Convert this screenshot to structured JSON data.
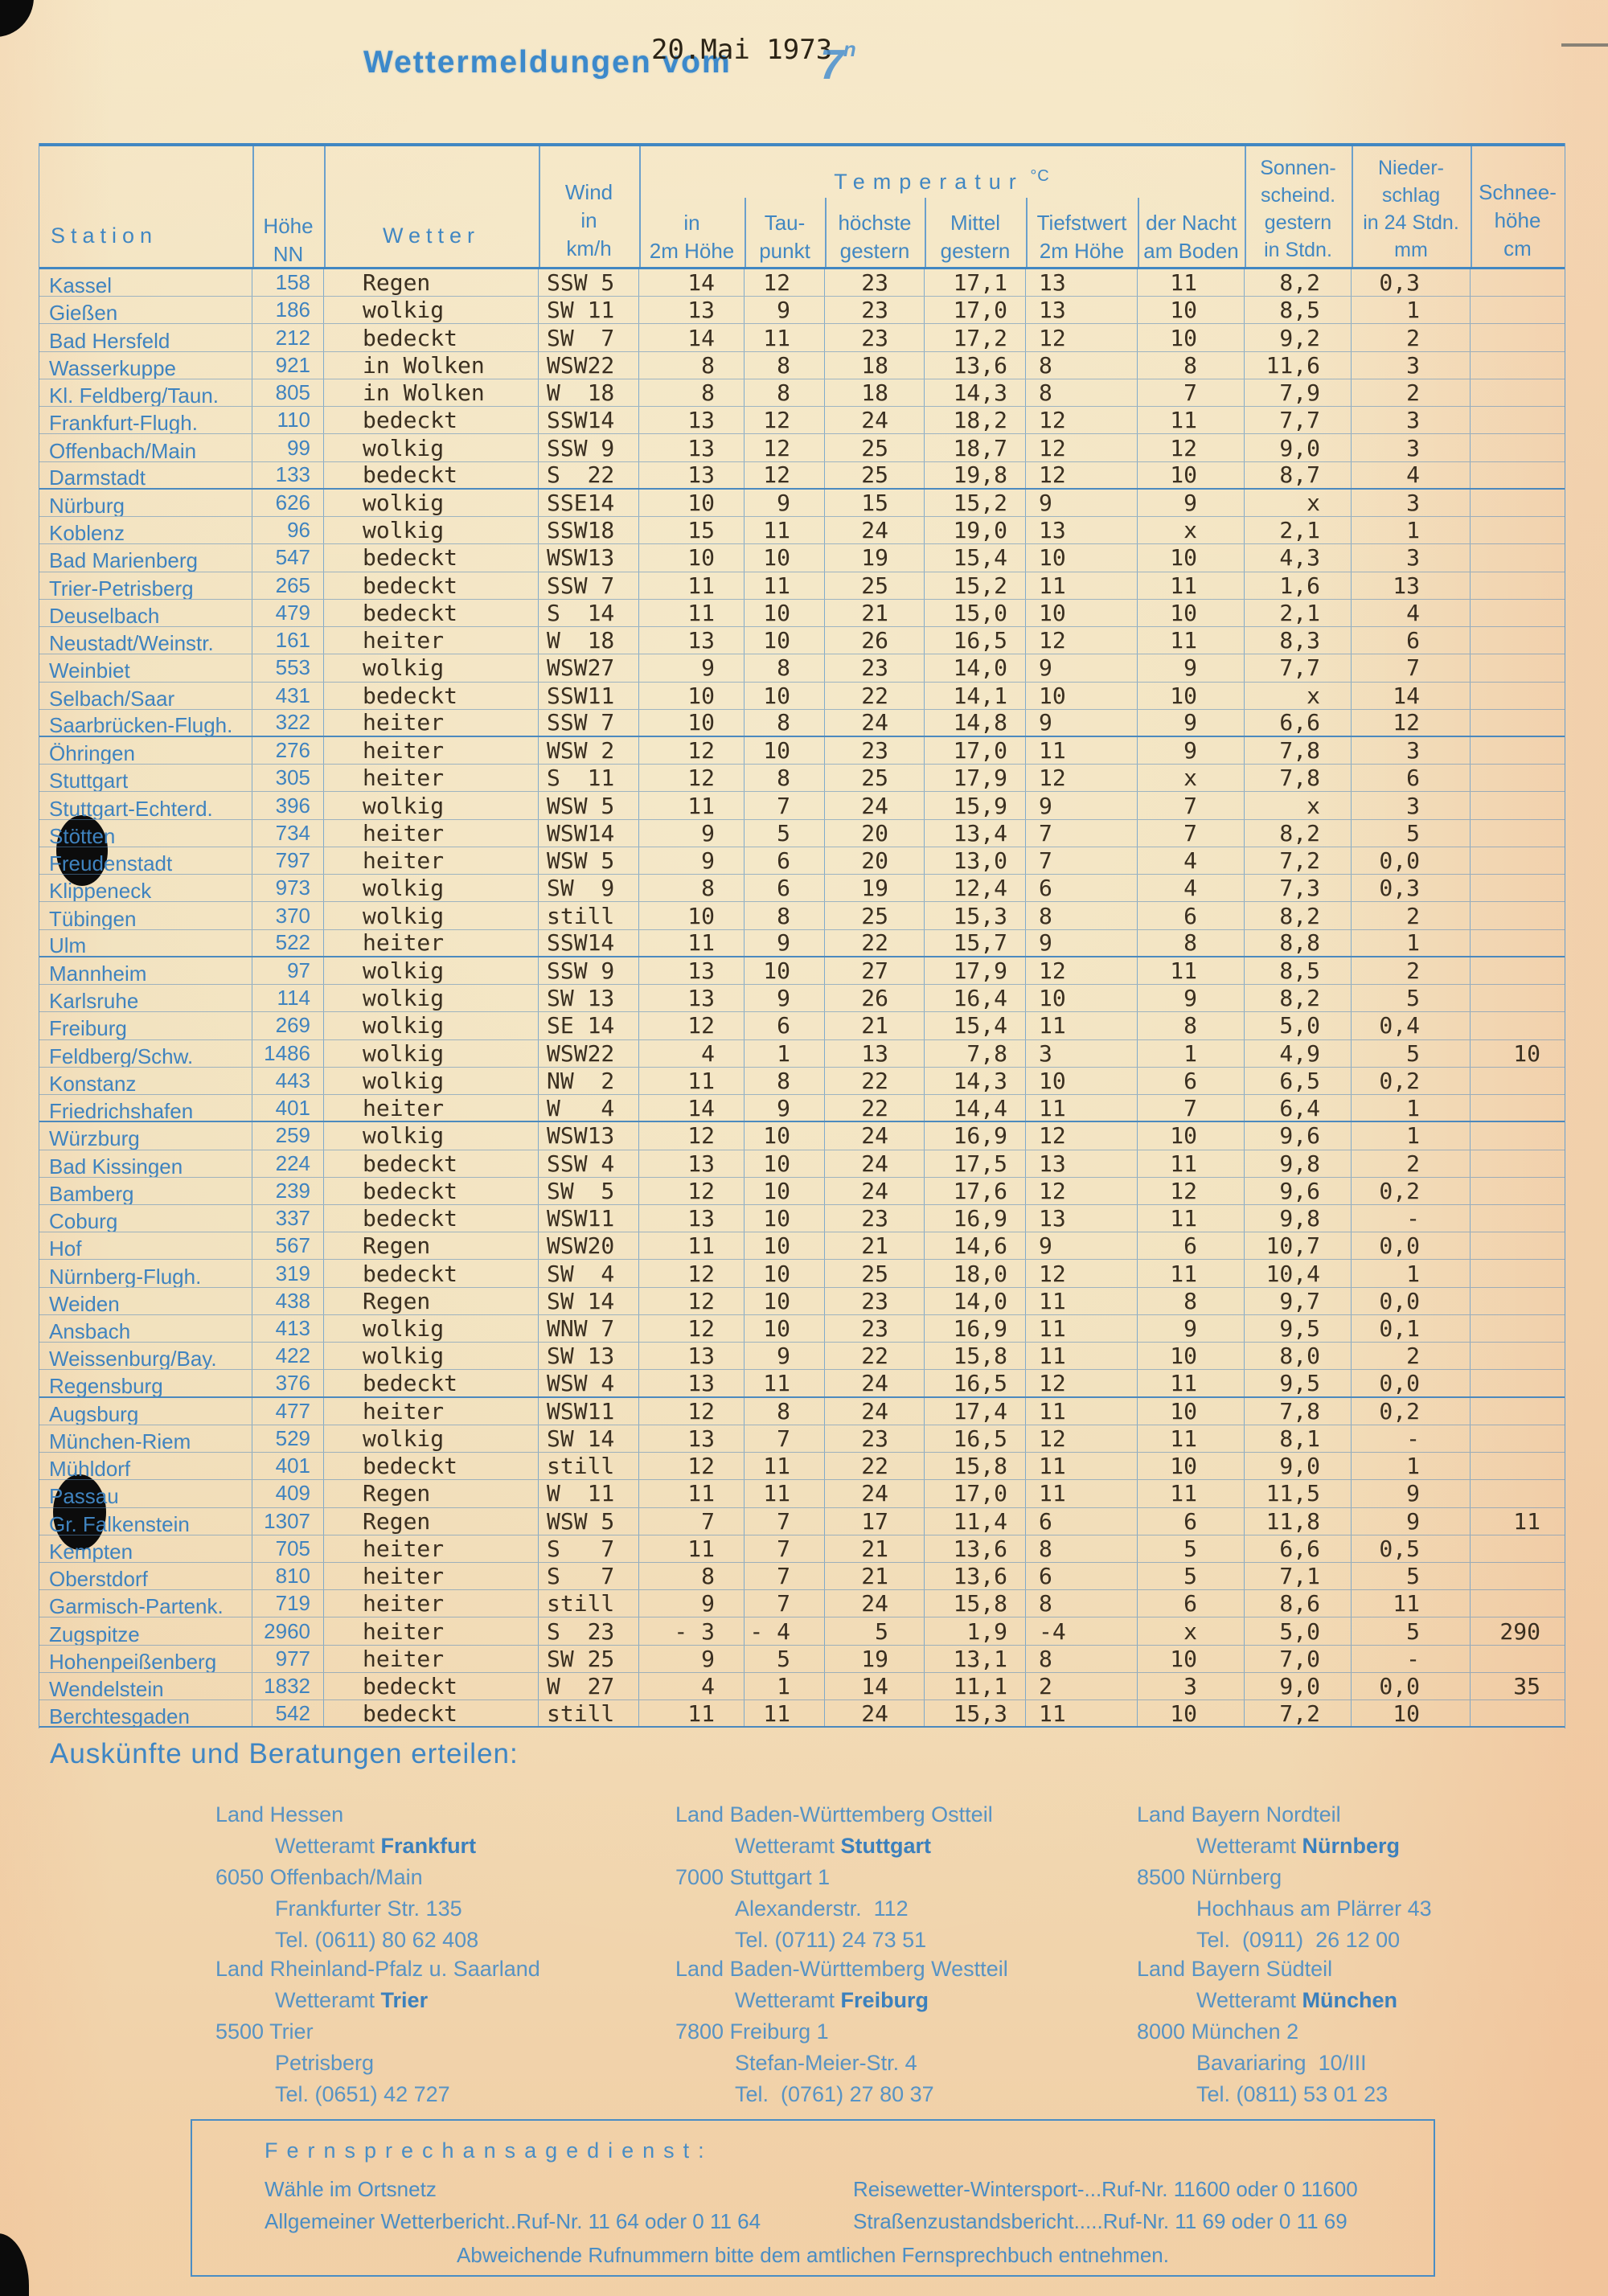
{
  "page": {
    "title_main": "Wettermeldungen vom",
    "title_date": "20.Mai 1973",
    "title_time": "7",
    "title_time_sup": "n",
    "ink_blue": "#4187c2",
    "ink_black": "#3a2f20",
    "paper": "#f1dfba"
  },
  "table": {
    "headers": {
      "station": "Station",
      "hoehe": "Höhe\nNN",
      "wetter": "Wetter",
      "wind": "Wind\nin\nkm/h",
      "temp_group": "Temperatur",
      "temp_unit": "°C",
      "t2m": "in\n2m Höhe",
      "tau": "Tau-\npunkt",
      "hoechste": "höchste\ngestern",
      "mittel": "Mittel\ngestern",
      "tiefstwert": "Tiefstwert\n2m Höhe",
      "nacht": "der Nacht\nam Boden",
      "sonne": "Sonnen-\nscheind.\ngestern\nin Stdn.",
      "nieder": "Nieder-\nschlag\nin 24 Stdn.\nmm",
      "schnee": "Schnee-\nhöhe\ncm"
    },
    "row_fields": [
      "station",
      "hoehe_nn",
      "wetter",
      "wind_km_h",
      "temp_2m_hoehe",
      "taupunkt",
      "hoechste_gestern",
      "mittel_gestern",
      "tiefstwert_2m_hoehe",
      "tiefstwert_nacht_am_boden",
      "sonnenschein_gestern_stdn",
      "niederschlag_24stdn_mm",
      "schneehoehe_cm",
      "group_end"
    ],
    "rows": [
      [
        "Kassel",
        "158",
        "Regen",
        "SSW 5",
        "14",
        "12",
        "23",
        "17,1",
        "13",
        "11",
        "8,2",
        "0,3",
        "",
        0
      ],
      [
        "Gießen",
        "186",
        "wolkig",
        "SW 11",
        "13",
        "9",
        "23",
        "17,0",
        "13",
        "10",
        "8,5",
        "1",
        "",
        0
      ],
      [
        "Bad Hersfeld",
        "212",
        "bedeckt",
        "SW  7",
        "14",
        "11",
        "23",
        "17,2",
        "12",
        "10",
        "9,2",
        "2",
        "",
        0
      ],
      [
        "Wasserkuppe",
        "921",
        "in Wolken",
        "WSW22",
        "8",
        "8",
        "18",
        "13,6",
        "8",
        "8",
        "11,6",
        "3",
        "",
        0
      ],
      [
        "Kl. Feldberg/Taun.",
        "805",
        "in Wolken",
        "W  18",
        "8",
        "8",
        "18",
        "14,3",
        "8",
        "7",
        "7,9",
        "2",
        "",
        0
      ],
      [
        "Frankfurt-Flugh.",
        "110",
        "bedeckt",
        "SSW14",
        "13",
        "12",
        "24",
        "18,2",
        "12",
        "11",
        "7,7",
        "3",
        "",
        0
      ],
      [
        "Offenbach/Main",
        "99",
        "wolkig",
        "SSW 9",
        "13",
        "12",
        "25",
        "18,7",
        "12",
        "12",
        "9,0",
        "3",
        "",
        0
      ],
      [
        "Darmstadt",
        "133",
        "bedeckt",
        "S  22",
        "13",
        "12",
        "25",
        "19,8",
        "12",
        "10",
        "8,7",
        "4",
        "",
        1
      ],
      [
        "Nürburg",
        "626",
        "wolkig",
        "SSE14",
        "10",
        "9",
        "15",
        "15,2",
        "9",
        "9",
        "x",
        "3",
        "",
        0
      ],
      [
        "Koblenz",
        "96",
        "wolkig",
        "SSW18",
        "15",
        "11",
        "24",
        "19,0",
        "13",
        "x",
        "2,1",
        "1",
        "",
        0
      ],
      [
        "Bad Marienberg",
        "547",
        "bedeckt",
        "WSW13",
        "10",
        "10",
        "19",
        "15,4",
        "10",
        "10",
        "4,3",
        "3",
        "",
        0
      ],
      [
        "Trier-Petrisberg",
        "265",
        "bedeckt",
        "SSW 7",
        "11",
        "11",
        "25",
        "15,2",
        "11",
        "11",
        "1,6",
        "13",
        "",
        0
      ],
      [
        "Deuselbach",
        "479",
        "bedeckt",
        "S  14",
        "11",
        "10",
        "21",
        "15,0",
        "10",
        "10",
        "2,1",
        "4",
        "",
        0
      ],
      [
        "Neustadt/Weinstr.",
        "161",
        "heiter",
        "W  18",
        "13",
        "10",
        "26",
        "16,5",
        "12",
        "11",
        "8,3",
        "6",
        "",
        0
      ],
      [
        "Weinbiet",
        "553",
        "wolkig",
        "WSW27",
        "9",
        "8",
        "23",
        "14,0",
        "9",
        "9",
        "7,7",
        "7",
        "",
        0
      ],
      [
        "Selbach/Saar",
        "431",
        "bedeckt",
        "SSW11",
        "10",
        "10",
        "22",
        "14,1",
        "10",
        "10",
        "x",
        "14",
        "",
        0
      ],
      [
        "Saarbrücken-Flugh.",
        "322",
        "heiter",
        "SSW 7",
        "10",
        "8",
        "24",
        "14,8",
        "9",
        "9",
        "6,6",
        "12",
        "",
        1
      ],
      [
        "Öhringen",
        "276",
        "heiter",
        "WSW 2",
        "12",
        "10",
        "23",
        "17,0",
        "11",
        "9",
        "7,8",
        "3",
        "",
        0
      ],
      [
        "Stuttgart",
        "305",
        "heiter",
        "S  11",
        "12",
        "8",
        "25",
        "17,9",
        "12",
        "x",
        "7,8",
        "6",
        "",
        0
      ],
      [
        "Stuttgart-Echterd.",
        "396",
        "wolkig",
        "WSW 5",
        "11",
        "7",
        "24",
        "15,9",
        "9",
        "7",
        "x",
        "3",
        "",
        0
      ],
      [
        "Stötten",
        "734",
        "heiter",
        "WSW14",
        "9",
        "5",
        "20",
        "13,4",
        "7",
        "7",
        "8,2",
        "5",
        "",
        0
      ],
      [
        "Freudenstadt",
        "797",
        "heiter",
        "WSW 5",
        "9",
        "6",
        "20",
        "13,0",
        "7",
        "4",
        "7,2",
        "0,0",
        "",
        0
      ],
      [
        "Klippeneck",
        "973",
        "wolkig",
        "SW  9",
        "8",
        "6",
        "19",
        "12,4",
        "6",
        "4",
        "7,3",
        "0,3",
        "",
        0
      ],
      [
        "Tübingen",
        "370",
        "wolkig",
        "still",
        "10",
        "8",
        "25",
        "15,3",
        "8",
        "6",
        "8,2",
        "2",
        "",
        0
      ],
      [
        "Ulm",
        "522",
        "heiter",
        "SSW14",
        "11",
        "9",
        "22",
        "15,7",
        "9",
        "8",
        "8,8",
        "1",
        "",
        1
      ],
      [
        "Mannheim",
        "97",
        "wolkig",
        "SSW 9",
        "13",
        "10",
        "27",
        "17,9",
        "12",
        "11",
        "8,5",
        "2",
        "",
        0
      ],
      [
        "Karlsruhe",
        "114",
        "wolkig",
        "SW 13",
        "13",
        "9",
        "26",
        "16,4",
        "10",
        "9",
        "8,2",
        "5",
        "",
        0
      ],
      [
        "Freiburg",
        "269",
        "wolkig",
        "SE 14",
        "12",
        "6",
        "21",
        "15,4",
        "11",
        "8",
        "5,0",
        "0,4",
        "",
        0
      ],
      [
        "Feldberg/Schw.",
        "1486",
        "wolkig",
        "WSW22",
        "4",
        "1",
        "13",
        "7,8",
        "3",
        "1",
        "4,9",
        "5",
        "10",
        0
      ],
      [
        "Konstanz",
        "443",
        "wolkig",
        "NW  2",
        "11",
        "8",
        "22",
        "14,3",
        "10",
        "6",
        "6,5",
        "0,2",
        "",
        0
      ],
      [
        "Friedrichshafen",
        "401",
        "heiter",
        "W   4",
        "14",
        "9",
        "22",
        "14,4",
        "11",
        "7",
        "6,4",
        "1",
        "",
        1
      ],
      [
        "Würzburg",
        "259",
        "wolkig",
        "WSW13",
        "12",
        "10",
        "24",
        "16,9",
        "12",
        "10",
        "9,6",
        "1",
        "",
        0
      ],
      [
        "Bad Kissingen",
        "224",
        "bedeckt",
        "SSW 4",
        "13",
        "10",
        "24",
        "17,5",
        "13",
        "11",
        "9,8",
        "2",
        "",
        0
      ],
      [
        "Bamberg",
        "239",
        "bedeckt",
        "SW  5",
        "12",
        "10",
        "24",
        "17,6",
        "12",
        "12",
        "9,6",
        "0,2",
        "",
        0
      ],
      [
        "Coburg",
        "337",
        "bedeckt",
        "WSW11",
        "13",
        "10",
        "23",
        "16,9",
        "13",
        "11",
        "9,8",
        "-",
        "",
        0
      ],
      [
        "Hof",
        "567",
        "Regen",
        "WSW20",
        "11",
        "10",
        "21",
        "14,6",
        "9",
        "6",
        "10,7",
        "0,0",
        "",
        0
      ],
      [
        "Nürnberg-Flugh.",
        "319",
        "bedeckt",
        "SW  4",
        "12",
        "10",
        "25",
        "18,0",
        "12",
        "11",
        "10,4",
        "1",
        "",
        0
      ],
      [
        "Weiden",
        "438",
        "Regen",
        "SW 14",
        "12",
        "10",
        "23",
        "14,0",
        "11",
        "8",
        "9,7",
        "0,0",
        "",
        0
      ],
      [
        "Ansbach",
        "413",
        "wolkig",
        "WNW 7",
        "12",
        "10",
        "23",
        "16,9",
        "11",
        "9",
        "9,5",
        "0,1",
        "",
        0
      ],
      [
        "Weissenburg/Bay.",
        "422",
        "wolkig",
        "SW 13",
        "13",
        "9",
        "22",
        "15,8",
        "11",
        "10",
        "8,0",
        "2",
        "",
        0
      ],
      [
        "Regensburg",
        "376",
        "bedeckt",
        "WSW 4",
        "13",
        "11",
        "24",
        "16,5",
        "12",
        "11",
        "9,5",
        "0,0",
        "",
        1
      ],
      [
        "Augsburg",
        "477",
        "heiter",
        "WSW11",
        "12",
        "8",
        "24",
        "17,4",
        "11",
        "10",
        "7,8",
        "0,2",
        "",
        0
      ],
      [
        "München-Riem",
        "529",
        "wolkig",
        "SW 14",
        "13",
        "7",
        "23",
        "16,5",
        "12",
        "11",
        "8,1",
        "-",
        "",
        0
      ],
      [
        "Mühldorf",
        "401",
        "bedeckt",
        "still",
        "12",
        "11",
        "22",
        "15,8",
        "11",
        "10",
        "9,0",
        "1",
        "",
        0
      ],
      [
        "Passau",
        "409",
        "Regen",
        "W  11",
        "11",
        "11",
        "24",
        "17,0",
        "11",
        "11",
        "11,5",
        "9",
        "",
        0
      ],
      [
        "Gr. Falkenstein",
        "1307",
        "Regen",
        "WSW 5",
        "7",
        "7",
        "17",
        "11,4",
        "6",
        "6",
        "11,8",
        "9",
        "11",
        0
      ],
      [
        "Kempten",
        "705",
        "heiter",
        "S   7",
        "11",
        "7",
        "21",
        "13,6",
        "8",
        "5",
        "6,6",
        "0,5",
        "",
        0
      ],
      [
        "Oberstdorf",
        "810",
        "heiter",
        "S   7",
        "8",
        "7",
        "21",
        "13,6",
        "6",
        "5",
        "7,1",
        "5",
        "",
        0
      ],
      [
        "Garmisch-Partenk.",
        "719",
        "heiter",
        "still",
        "9",
        "7",
        "24",
        "15,8",
        "8",
        "6",
        "8,6",
        "11",
        "",
        0
      ],
      [
        "Zugspitze",
        "2960",
        "heiter",
        "S  23",
        "- 3",
        "- 4",
        "5",
        "1,9",
        "-4",
        "x",
        "5,0",
        "5",
        "290",
        0
      ],
      [
        "Hohenpeißenberg",
        "977",
        "heiter",
        "SW 25",
        "9",
        "5",
        "19",
        "13,1",
        "8",
        "10",
        "7,0",
        "-",
        "",
        0
      ],
      [
        "Wendelstein",
        "1832",
        "bedeckt",
        "W  27",
        "4",
        "1",
        "14",
        "11,1",
        "2",
        "3",
        "9,0",
        "0,0",
        "35",
        0
      ],
      [
        "Berchtesgaden",
        "542",
        "bedeckt",
        "still",
        "11",
        "11",
        "24",
        "15,3",
        "11",
        "10",
        "7,2",
        "10",
        "",
        1
      ]
    ]
  },
  "footer": {
    "heading": "Auskünfte und Beratungen erteilen:",
    "contacts": [
      {
        "region": "Land Hessen",
        "office": "Wetteramt",
        "city": "Frankfurt",
        "line1": "6050 Offenbach/Main",
        "line2": "Frankfurter Str. 135",
        "line3": "Tel. (0611) 80 62 408"
      },
      {
        "region": "Land Baden-Württemberg Ostteil",
        "office": "Wetteramt",
        "city": "Stuttgart",
        "line1": "7000 Stuttgart 1",
        "line2": "Alexanderstr.  112",
        "line3": "Tel. (0711) 24 73 51"
      },
      {
        "region": "Land Bayern Nordteil",
        "office": "Wetteramt",
        "city": "Nürnberg",
        "line1": "8500 Nürnberg",
        "line2": "Hochhaus am Plärrer 43",
        "line3": "Tel.  (0911)  26 12 00"
      },
      {
        "region": "Land Rheinland-Pfalz u. Saarland",
        "office": "Wetteramt",
        "city": "Trier",
        "line1": "5500 Trier",
        "line2": "Petrisberg",
        "line3": "Tel. (0651) 42 727"
      },
      {
        "region": "Land Baden-Württemberg Westteil",
        "office": "Wetteramt",
        "city": "Freiburg",
        "line1": "7800 Freiburg 1",
        "line2": "Stefan-Meier-Str. 4",
        "line3": "Tel.  (0761) 27 80 37"
      },
      {
        "region": "Land Bayern Südteil",
        "office": "Wetteramt",
        "city": "München",
        "line1": "8000 München 2",
        "line2": "Bavariaring  10/III",
        "line3": "Tel. (0811) 53 01 23"
      }
    ],
    "phone_box": {
      "heading": "Fernsprechansagedienst:",
      "left_line1": "Wähle im Ortsnetz",
      "left_line2": "Allgemeiner Wetterbericht..Ruf-Nr. 11 64 oder 0 11 64",
      "right_line1": "Reisewetter-Wintersport-...Ruf-Nr. 11600 oder 0 11600",
      "right_line2": "Straßenzustandsbericht.....Ruf-Nr. 11 69 oder 0 11 69",
      "note": "Abweichende Rufnummern bitte dem amtlichen Fernsprechbuch entnehmen."
    }
  }
}
